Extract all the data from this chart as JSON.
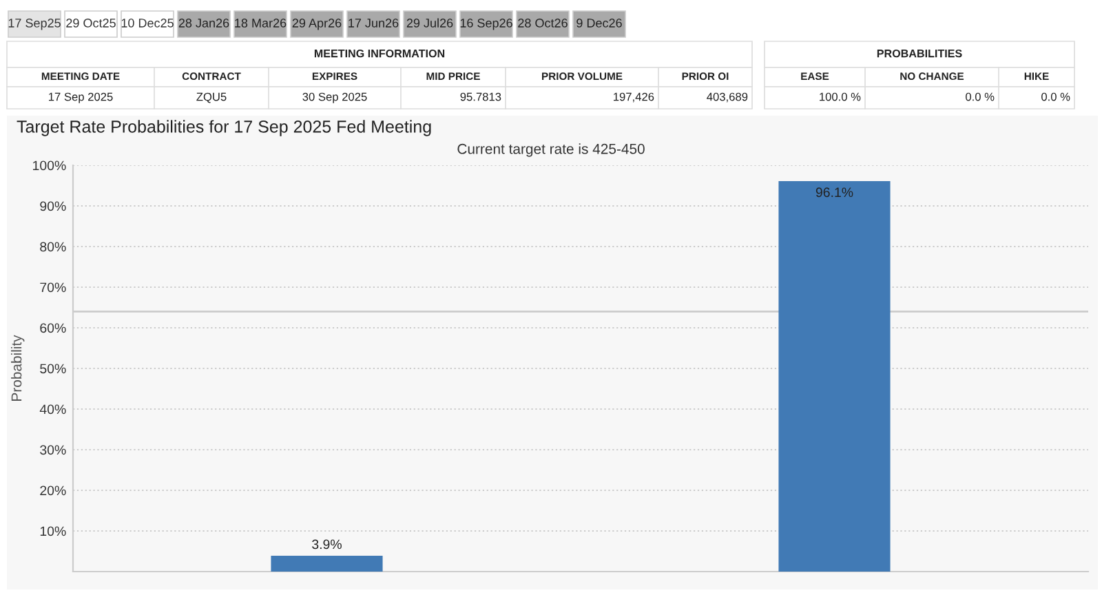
{
  "chart_data": {
    "type": "bar",
    "title": "Target Rate Probabilities for 17 Sep 2025 Fed Meeting",
    "subtitle": "Current target rate is 425-450",
    "ylabel": "Probability",
    "categories": [
      null,
      null
    ],
    "series": [
      {
        "color": "#417ab5",
        "values": [
          3.9,
          96.1
        ],
        "value_labels": [
          "3.9%",
          "96.1%"
        ]
      }
    ],
    "ylim": [
      0,
      100
    ],
    "yticks": [
      {
        "value": 10,
        "label": "10%"
      },
      {
        "value": 20,
        "label": "20%"
      },
      {
        "value": 30,
        "label": "30%"
      },
      {
        "value": 40,
        "label": "40%"
      },
      {
        "value": 50,
        "label": "50%"
      },
      {
        "value": 60,
        "label": "60%"
      },
      {
        "value": 70,
        "label": "70%"
      },
      {
        "value": 80,
        "label": "80%"
      },
      {
        "value": 90,
        "label": "90%"
      },
      {
        "value": 100,
        "label": "100%"
      }
    ],
    "grid": "y",
    "line_style": "dotted",
    "ref_lines": [
      {
        "axis": "y",
        "value": 64,
        "color": "#cccccc"
      }
    ],
    "annotations": [
      "17 Sep25",
      "29 Oct25",
      "10 Dec25",
      "28 Jan26",
      "18 Mar26",
      "29 Apr26",
      "17 Jun26",
      "29 Jul26",
      "16 Sep26",
      "28 Oct26",
      "9 Dec26",
      "MEETING INFORMATION",
      "PROBABILITIES",
      "MEETING DATE",
      "CONTRACT",
      "EXPIRES",
      "MID PRICE",
      "PRIOR VOLUME",
      "PRIOR OI",
      "EASE",
      "NO CHANGE",
      "HIKE",
      "17 Sep 2025",
      "ZQU5",
      "30 Sep 2025",
      "95.7813",
      "197,426",
      "403,689",
      "100.0 %",
      "0.0 %",
      "0.0 %"
    ]
  }
}
